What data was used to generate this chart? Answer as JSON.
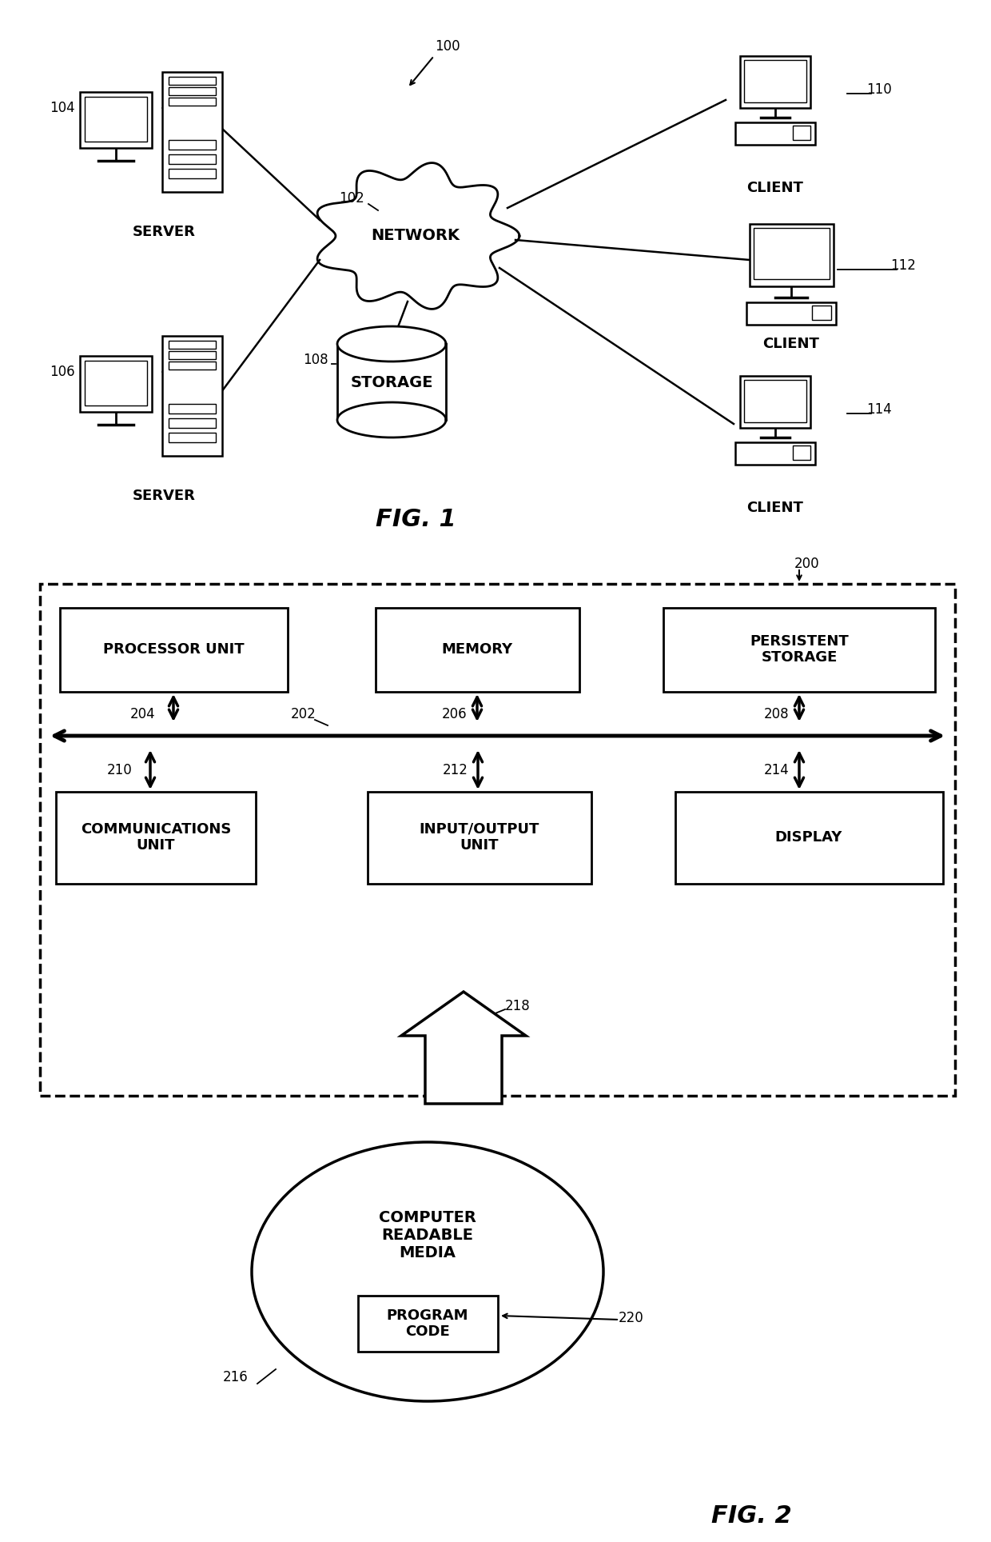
{
  "bg_color": "#ffffff",
  "fig1_label": "FIG. 1",
  "fig2_label": "FIG. 2",
  "ref_100": "100",
  "ref_102": "102",
  "ref_104": "104",
  "ref_106": "106",
  "ref_108": "108",
  "ref_110": "110",
  "ref_112": "112",
  "ref_114": "114",
  "ref_200": "200",
  "ref_202": "202",
  "ref_204": "204",
  "ref_206": "206",
  "ref_208": "208",
  "ref_210": "210",
  "ref_212": "212",
  "ref_214": "214",
  "ref_216": "216",
  "ref_218": "218",
  "ref_220": "220",
  "label_network": "NETWORK",
  "label_storage": "STORAGE",
  "label_server": "SERVER",
  "label_client": "CLIENT",
  "label_proc": "PROCESSOR UNIT",
  "label_mem": "MEMORY",
  "label_pers": "PERSISTENT\nSTORAGE",
  "label_comm": "COMMUNICATIONS\nUNIT",
  "label_io": "INPUT/OUTPUT\nUNIT",
  "label_disp": "DISPLAY",
  "label_media": "COMPUTER\nREADABLE\nMEDIA",
  "label_prog": "PROGRAM\nCODE"
}
